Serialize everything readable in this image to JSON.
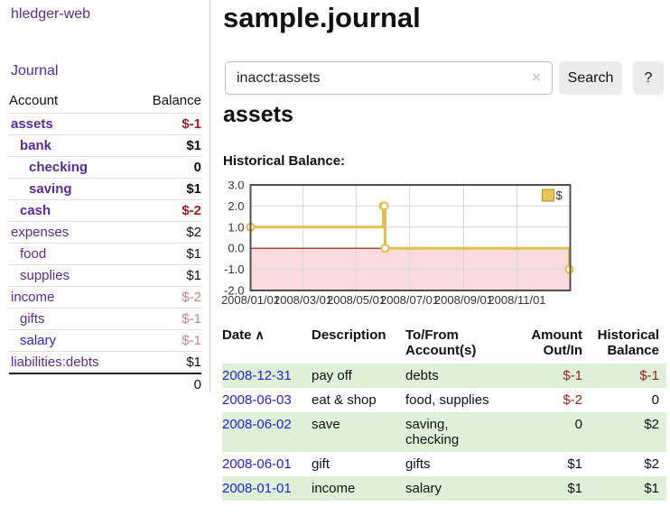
{
  "colors": {
    "link_purple": "#5a2b97",
    "link_blue": "#2323d8",
    "negative_strong": "#9e1f1f",
    "negative_soft": "#c28484",
    "row_stripe_green": "#dff0d8",
    "chart_line_gold": "#e3bf4d"
  },
  "sidebar": {
    "app_title": "hledger-web",
    "nav_journal": "Journal",
    "accounts": {
      "header_account": "Account",
      "header_balance": "Balance",
      "rows": [
        {
          "name": "assets",
          "balance": "$-1"
        },
        {
          "name": "bank",
          "balance": "$1"
        },
        {
          "name": "checking",
          "balance": "0"
        },
        {
          "name": "saving",
          "balance": "$1"
        },
        {
          "name": "cash",
          "balance": "$-2"
        },
        {
          "name": "expenses",
          "balance": "$2"
        },
        {
          "name": "food",
          "balance": "$1"
        },
        {
          "name": "supplies",
          "balance": "$1"
        },
        {
          "name": "income",
          "balance": "$-2"
        },
        {
          "name": "gifts",
          "balance": "$-1"
        },
        {
          "name": "salary",
          "balance": "$-1"
        },
        {
          "name": "liabilities:debts",
          "balance": "$1"
        }
      ],
      "total": "0"
    }
  },
  "main": {
    "title": "sample.journal",
    "search": {
      "value": "inacct:assets",
      "clear_icon": "×",
      "search_button": "Search",
      "help_button": "?"
    },
    "account_heading": "assets",
    "section_label": "Historical Balance:"
  },
  "chart_data": {
    "type": "line",
    "step": true,
    "title": "Historical Balance",
    "ylim": [
      -2,
      3
    ],
    "y_ticks": [
      3.0,
      2.0,
      1.0,
      0.0,
      -1.0,
      -2.0
    ],
    "x_range": [
      "2008-01-01",
      "2009-01-01"
    ],
    "x_tick_dates": [
      "2008-01-01",
      "2008-03-01",
      "2008-05-01",
      "2008-07-01",
      "2008-09-01",
      "2008-11-01"
    ],
    "x_tick_labels": [
      "2008/01/01",
      "2008/03/01",
      "2008/05/01",
      "2008/07/01",
      "2008/09/01",
      "2008/11/01"
    ],
    "grid": true,
    "legend_position": "top-right",
    "legend": [
      {
        "label": "$"
      }
    ],
    "series": [
      {
        "name": "$",
        "points": [
          [
            "2008-01-01",
            1
          ],
          [
            "2008-06-01",
            2
          ],
          [
            "2008-06-02",
            2
          ],
          [
            "2008-06-03",
            0
          ],
          [
            "2008-12-31",
            -1
          ]
        ]
      }
    ],
    "style": {
      "line": "#e3bf4d",
      "marker_fill": "#ffffff",
      "negative_bg": "#f9dbdd",
      "zero_line": "#8b1313",
      "grid": "#d9d9d9",
      "border": "#4f4f4f",
      "legend_fill": "#eac656",
      "legend_border": "#b08c28",
      "tick_text": "#333333"
    }
  },
  "register": {
    "headers": {
      "date": "Date",
      "sort_icon": "∧",
      "description": "Description",
      "tofrom": "To/From Account(s)",
      "amount": "Amount Out/In",
      "balance": "Historical Balance"
    },
    "rows": [
      {
        "date": "2008-12-31",
        "description": "pay off",
        "accounts": "debts",
        "amount": "$-1",
        "balance": "$-1"
      },
      {
        "date": "2008-06-03",
        "description": "eat & shop",
        "accounts": "food, supplies",
        "amount": "$-2",
        "balance": "0"
      },
      {
        "date": "2008-06-02",
        "description": "save",
        "accounts": "saving, checking",
        "amount": "0",
        "balance": "$2"
      },
      {
        "date": "2008-06-01",
        "description": "gift",
        "accounts": "gifts",
        "amount": "$1",
        "balance": "$2"
      },
      {
        "date": "2008-01-01",
        "description": "income",
        "accounts": "salary",
        "amount": "$1",
        "balance": "$1"
      }
    ]
  }
}
